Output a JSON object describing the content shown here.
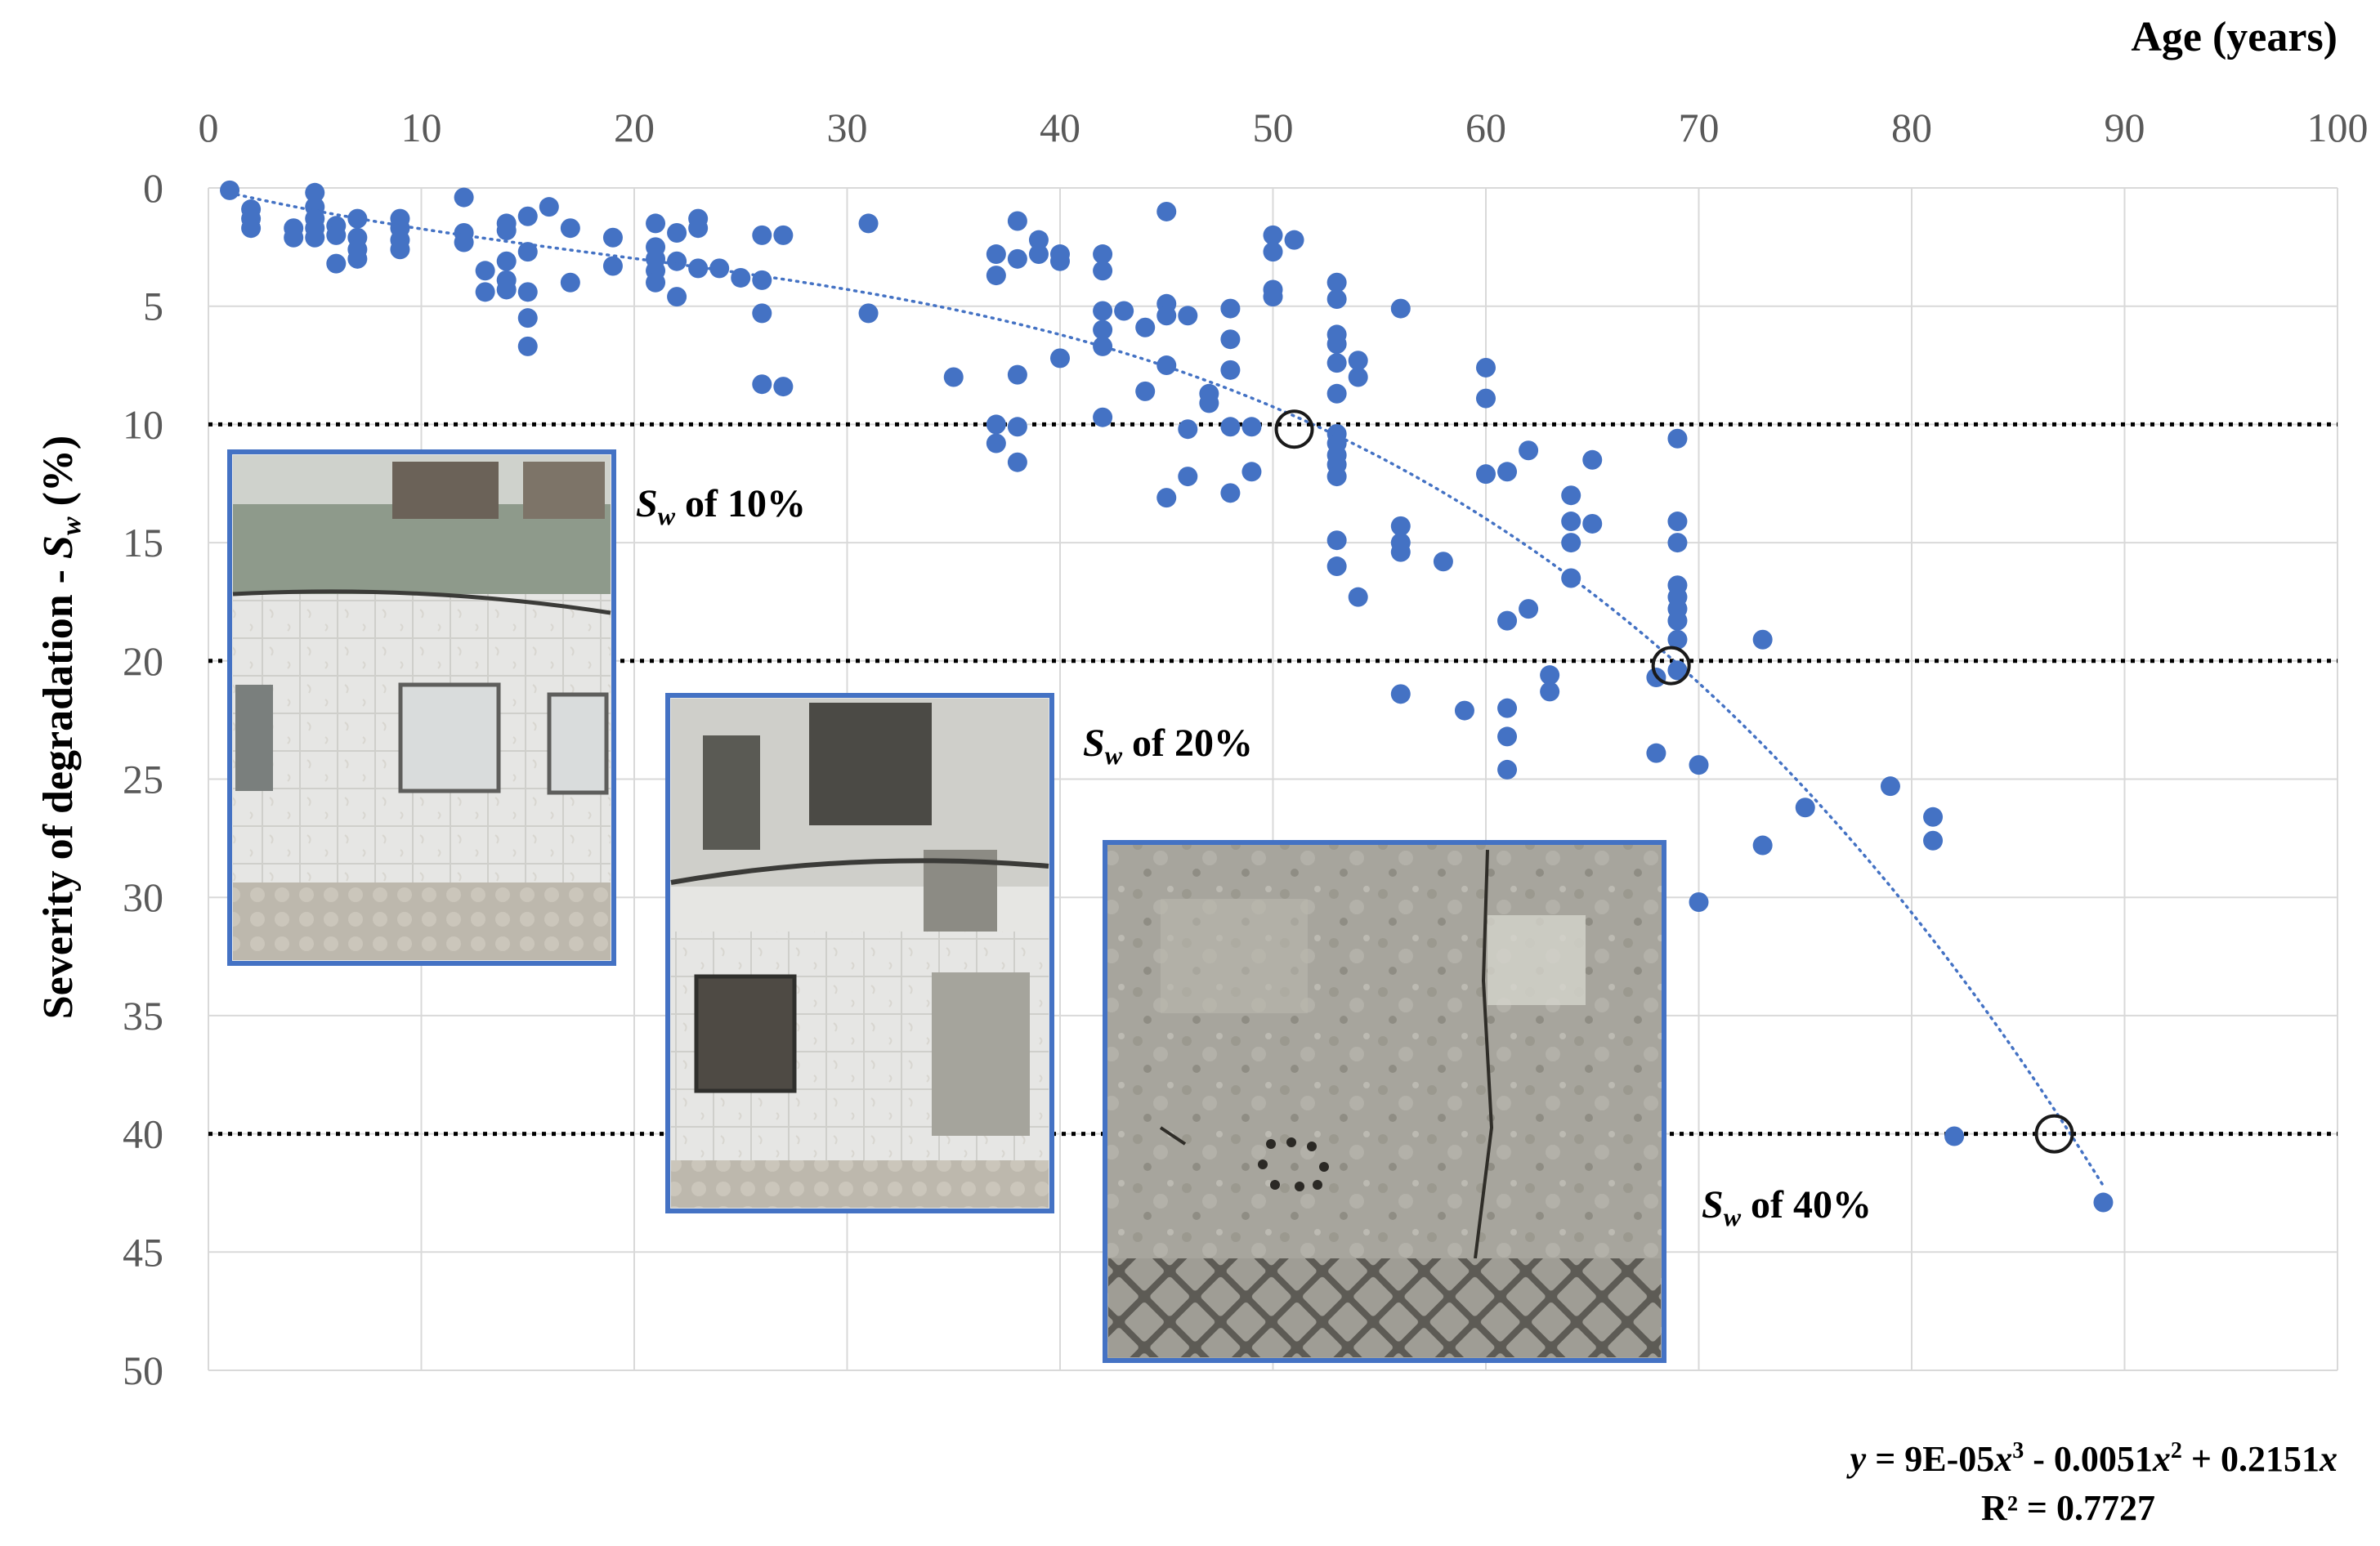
{
  "chart_data": {
    "type": "scatter",
    "xlabel": "Age (years)",
    "ylabel": "Severity of degradation - Sw (%)",
    "ylabel_parts": {
      "main": "Severity of degradation - ",
      "symbol": "S",
      "sub": "w",
      "unit": " (%)"
    },
    "xlim": [
      0,
      100
    ],
    "ylim": [
      0,
      50
    ],
    "x_axis_position": "top",
    "y_axis_inverted": true,
    "grid": true,
    "x_ticks": [
      "0",
      "10",
      "20",
      "30",
      "40",
      "50",
      "60",
      "70",
      "80",
      "90",
      "100"
    ],
    "y_ticks": [
      "0",
      "5",
      "10",
      "15",
      "20",
      "25",
      "30",
      "35",
      "40",
      "45",
      "50"
    ],
    "marker_color": "#4472c4",
    "trendline": {
      "type": "polynomial",
      "order": 3,
      "coefficients": {
        "a3": 9e-05,
        "a2": -0.0051,
        "a1": 0.2151,
        "a0": 0
      },
      "equation_text": {
        "y": "y",
        "p1": " = 9E-05",
        "x1": "x",
        "s1": "3",
        "p2": " - 0.0051",
        "x2": "x",
        "s2": "2",
        "p3": " + 0.2151",
        "x3": "x"
      },
      "r2_text": "R² = 0.7727",
      "style": "dotted",
      "color": "#4472c4"
    },
    "reference_lines": [
      {
        "y": 10,
        "style": "dotted",
        "color": "#000000"
      },
      {
        "y": 20,
        "style": "dotted",
        "color": "#000000"
      },
      {
        "y": 40,
        "style": "dotted",
        "color": "#000000"
      }
    ],
    "highlight_points": [
      {
        "x": 51,
        "y": 10.2
      },
      {
        "x": 68.7,
        "y": 20.2
      },
      {
        "x": 86.7,
        "y": 40
      }
    ],
    "annotations": [
      {
        "symbol": "S",
        "sub": "w",
        "text": " of 10%"
      },
      {
        "symbol": "S",
        "sub": "w",
        "text": " of 20%"
      },
      {
        "symbol": "S",
        "sub": "w",
        "text": " of 40%"
      }
    ],
    "points": [
      [
        1,
        0.1
      ],
      [
        2,
        0.9
      ],
      [
        2,
        1.3
      ],
      [
        2,
        1.7
      ],
      [
        4,
        1.7
      ],
      [
        4,
        2.1
      ],
      [
        5,
        0.2
      ],
      [
        5,
        0.8
      ],
      [
        5,
        1.3
      ],
      [
        5,
        1.7
      ],
      [
        5,
        2.1
      ],
      [
        6,
        1.6
      ],
      [
        6,
        2.0
      ],
      [
        6,
        3.2
      ],
      [
        7,
        1.3
      ],
      [
        7,
        2.1
      ],
      [
        7,
        2.6
      ],
      [
        7,
        3.0
      ],
      [
        9,
        1.3
      ],
      [
        9,
        1.7
      ],
      [
        9,
        2.2
      ],
      [
        9,
        2.6
      ],
      [
        12,
        0.4
      ],
      [
        12,
        1.9
      ],
      [
        12,
        2.3
      ],
      [
        13,
        3.5
      ],
      [
        13,
        4.4
      ],
      [
        14,
        1.5
      ],
      [
        14,
        1.8
      ],
      [
        14,
        3.1
      ],
      [
        14,
        3.9
      ],
      [
        14,
        4.3
      ],
      [
        15,
        1.2
      ],
      [
        15,
        2.7
      ],
      [
        15,
        4.4
      ],
      [
        15,
        5.5
      ],
      [
        15,
        6.7
      ],
      [
        16,
        0.8
      ],
      [
        17,
        1.7
      ],
      [
        17,
        4.0
      ],
      [
        19,
        2.1
      ],
      [
        19,
        3.3
      ],
      [
        21,
        1.5
      ],
      [
        21,
        2.5
      ],
      [
        21,
        3.0
      ],
      [
        21,
        3.5
      ],
      [
        21,
        4.0
      ],
      [
        22,
        1.9
      ],
      [
        22,
        3.1
      ],
      [
        22,
        4.6
      ],
      [
        23,
        1.3
      ],
      [
        23,
        1.7
      ],
      [
        23,
        3.4
      ],
      [
        24,
        3.4
      ],
      [
        25,
        3.8
      ],
      [
        26,
        2.0
      ],
      [
        26,
        3.9
      ],
      [
        26,
        5.3
      ],
      [
        26,
        8.3
      ],
      [
        27,
        2.0
      ],
      [
        27,
        8.4
      ],
      [
        31,
        1.5
      ],
      [
        31,
        5.3
      ],
      [
        35,
        8.0
      ],
      [
        37,
        2.8
      ],
      [
        37,
        3.7
      ],
      [
        37,
        10.0
      ],
      [
        37,
        10.8
      ],
      [
        38,
        1.4
      ],
      [
        38,
        3.0
      ],
      [
        38,
        7.9
      ],
      [
        38,
        10.1
      ],
      [
        38,
        11.6
      ],
      [
        39,
        2.2
      ],
      [
        39,
        2.8
      ],
      [
        40,
        2.8
      ],
      [
        40,
        3.1
      ],
      [
        40,
        7.2
      ],
      [
        42,
        2.8
      ],
      [
        42,
        3.5
      ],
      [
        42,
        5.2
      ],
      [
        42,
        6.0
      ],
      [
        42,
        6.7
      ],
      [
        42,
        9.7
      ],
      [
        43,
        5.2
      ],
      [
        44,
        5.9
      ],
      [
        44,
        8.6
      ],
      [
        45,
        1.0
      ],
      [
        45,
        4.9
      ],
      [
        45,
        5.4
      ],
      [
        45,
        7.5
      ],
      [
        45,
        13.1
      ],
      [
        46,
        5.4
      ],
      [
        46,
        10.2
      ],
      [
        46,
        12.2
      ],
      [
        47,
        8.7
      ],
      [
        47,
        9.1
      ],
      [
        48,
        5.1
      ],
      [
        48,
        6.4
      ],
      [
        48,
        7.7
      ],
      [
        48,
        10.1
      ],
      [
        48,
        12.9
      ],
      [
        49,
        10.1
      ],
      [
        49,
        12.0
      ],
      [
        50,
        2.0
      ],
      [
        50,
        2.7
      ],
      [
        50,
        4.3
      ],
      [
        50,
        4.6
      ],
      [
        51,
        2.2
      ],
      [
        53,
        4.0
      ],
      [
        53,
        4.7
      ],
      [
        53,
        6.2
      ],
      [
        53,
        6.6
      ],
      [
        53,
        7.4
      ],
      [
        53,
        8.7
      ],
      [
        53,
        10.4
      ],
      [
        53,
        10.8
      ],
      [
        53,
        11.3
      ],
      [
        53,
        11.7
      ],
      [
        53,
        12.2
      ],
      [
        53,
        14.9
      ],
      [
        53,
        16.0
      ],
      [
        54,
        7.3
      ],
      [
        54,
        8.0
      ],
      [
        54,
        17.3
      ],
      [
        56,
        5.1
      ],
      [
        56,
        14.3
      ],
      [
        56,
        15.0
      ],
      [
        56,
        15.4
      ],
      [
        56,
        21.4
      ],
      [
        58,
        15.8
      ],
      [
        59,
        22.1
      ],
      [
        60,
        7.6
      ],
      [
        60,
        8.9
      ],
      [
        60,
        12.1
      ],
      [
        61,
        12.0
      ],
      [
        61,
        18.3
      ],
      [
        61,
        22.0
      ],
      [
        61,
        23.2
      ],
      [
        61,
        24.6
      ],
      [
        62,
        11.1
      ],
      [
        62,
        17.8
      ],
      [
        63,
        20.6
      ],
      [
        63,
        21.3
      ],
      [
        64,
        13.0
      ],
      [
        64,
        14.1
      ],
      [
        64,
        15.0
      ],
      [
        64,
        16.5
      ],
      [
        65,
        11.5
      ],
      [
        65,
        14.2
      ],
      [
        68,
        20.7
      ],
      [
        68,
        23.9
      ],
      [
        69,
        10.6
      ],
      [
        69,
        14.1
      ],
      [
        69,
        15.0
      ],
      [
        69,
        16.8
      ],
      [
        69,
        17.3
      ],
      [
        69,
        17.8
      ],
      [
        69,
        18.3
      ],
      [
        69,
        19.1
      ],
      [
        69,
        20.4
      ],
      [
        70,
        24.4
      ],
      [
        70,
        30.2
      ],
      [
        73,
        19.1
      ],
      [
        73,
        27.8
      ],
      [
        75,
        26.2
      ],
      [
        79,
        25.3
      ],
      [
        81,
        26.6
      ],
      [
        81,
        27.6
      ],
      [
        82,
        40.1
      ],
      [
        89,
        42.9
      ]
    ]
  }
}
